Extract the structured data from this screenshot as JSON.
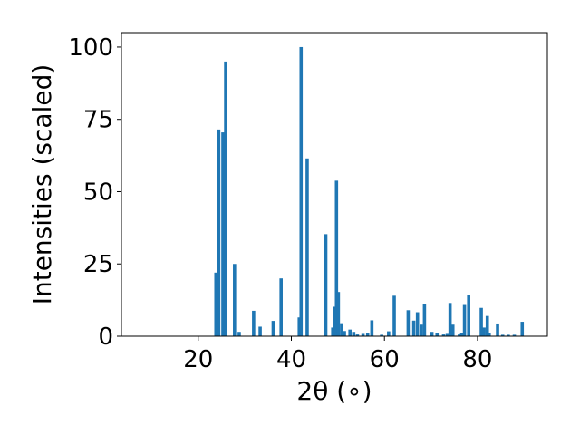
{
  "chart_data": {
    "type": "bar",
    "title": "",
    "xlabel": "2θ (∘)",
    "ylabel": "Intensities (scaled)",
    "xlim": [
      3.5,
      95
    ],
    "ylim": [
      0,
      105
    ],
    "grid": false,
    "bar_color": "#1f77b4",
    "bar_width": 0.7,
    "x_ticks": [
      {
        "value": 20,
        "label": "20"
      },
      {
        "value": 40,
        "label": "40"
      },
      {
        "value": 60,
        "label": "60"
      },
      {
        "value": 80,
        "label": "80"
      }
    ],
    "y_ticks": [
      {
        "value": 0,
        "label": "0"
      },
      {
        "value": 25,
        "label": "25"
      },
      {
        "value": 50,
        "label": "50"
      },
      {
        "value": 75,
        "label": "75"
      },
      {
        "value": 100,
        "label": "100"
      }
    ],
    "x": [
      23.8,
      24.4,
      25.3,
      25.9,
      27.8,
      28.8,
      31.9,
      33.3,
      36.1,
      37.8,
      41.7,
      42.1,
      43.4,
      47.4,
      48.9,
      49.4,
      49.7,
      50.1,
      50.8,
      51.4,
      52.6,
      53.4,
      54.2,
      55.4,
      56.4,
      57.3,
      59.4,
      60.9,
      62.1,
      65.1,
      66.3,
      67.1,
      67.9,
      68.6,
      70.2,
      71.3,
      72.7,
      73.5,
      74.1,
      74.7,
      76.1,
      76.6,
      77.2,
      78.1,
      80.8,
      81.4,
      82.1,
      82.5,
      84.3,
      85.4,
      86.6,
      87.9,
      89.6
    ],
    "values": [
      22,
      71.5,
      70.5,
      95,
      25,
      1.5,
      8.8,
      3.3,
      5.3,
      20,
      6.5,
      100,
      61.5,
      35.3,
      3,
      10.2,
      53.8,
      15.3,
      4.5,
      1.8,
      2.3,
      1.5,
      0.6,
      0.8,
      1,
      5.5,
      0.5,
      1.7,
      14,
      9,
      5.4,
      8.3,
      4,
      11,
      1.5,
      1,
      0.6,
      0.8,
      11.5,
      4,
      0.6,
      1.1,
      10.8,
      14.1,
      9.8,
      3,
      7,
      1.2,
      4.4,
      0.5,
      0.5,
      0.5,
      5
    ]
  }
}
